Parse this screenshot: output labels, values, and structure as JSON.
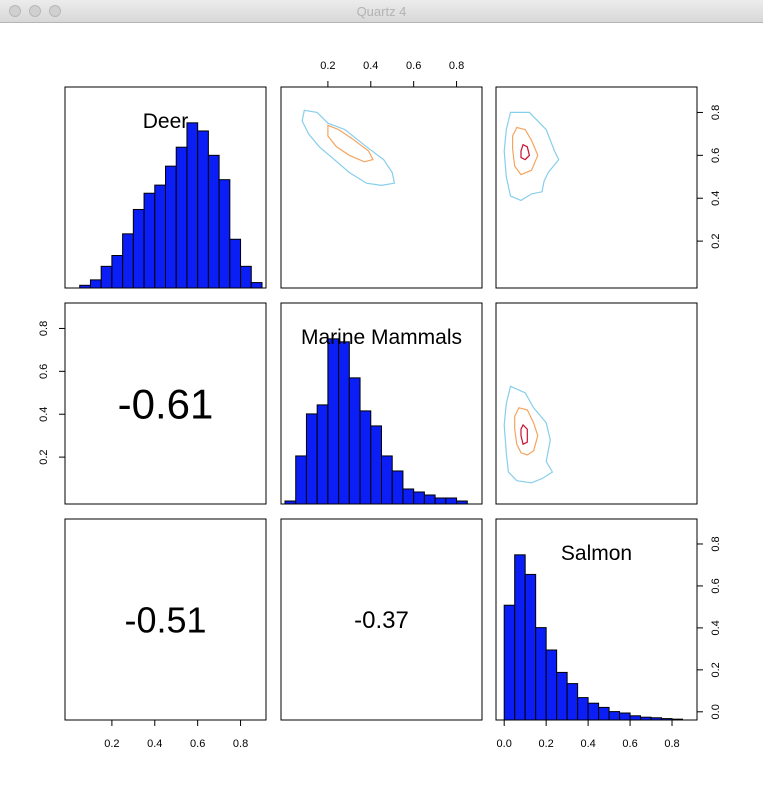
{
  "window": {
    "title": "Quartz 4"
  },
  "chart_data": {
    "type": "pairs",
    "variables": [
      "Deer",
      "Marine Mammals",
      "Salmon"
    ],
    "correlations": [
      {
        "row": 1,
        "col": 0,
        "label": "-0.61",
        "value": -0.61
      },
      {
        "row": 2,
        "col": 0,
        "label": "-0.51",
        "value": -0.51
      },
      {
        "row": 2,
        "col": 1,
        "label": "-0.37",
        "value": -0.37
      }
    ],
    "histograms": [
      {
        "variable": "Deer",
        "xlim": [
          0,
          0.9
        ],
        "breaks": [
          0,
          0.05,
          0.1,
          0.15,
          0.2,
          0.25,
          0.3,
          0.35,
          0.4,
          0.45,
          0.5,
          0.55,
          0.6,
          0.65,
          0.7,
          0.75,
          0.8,
          0.85,
          0.9
        ],
        "heights": [
          0,
          0.01,
          0.03,
          0.08,
          0.12,
          0.2,
          0.29,
          0.35,
          0.38,
          0.45,
          0.52,
          0.61,
          0.58,
          0.49,
          0.4,
          0.18,
          0.08,
          0.02
        ]
      },
      {
        "variable": "Marine Mammals",
        "xlim": [
          0,
          0.9
        ],
        "breaks": [
          0,
          0.05,
          0.1,
          0.15,
          0.2,
          0.25,
          0.3,
          0.35,
          0.4,
          0.45,
          0.5,
          0.55,
          0.6,
          0.65,
          0.7,
          0.75,
          0.8,
          0.85,
          0.9
        ],
        "heights": [
          0.01,
          0.16,
          0.3,
          0.33,
          0.55,
          0.54,
          0.42,
          0.31,
          0.26,
          0.16,
          0.11,
          0.05,
          0.04,
          0.03,
          0.02,
          0.02,
          0.01,
          0
        ]
      },
      {
        "variable": "Salmon",
        "xlim": [
          -0.02,
          0.9
        ],
        "breaks": [
          0,
          0.05,
          0.1,
          0.15,
          0.2,
          0.25,
          0.3,
          0.35,
          0.4,
          0.45,
          0.5,
          0.55,
          0.6,
          0.65,
          0.7,
          0.75,
          0.8,
          0.85
        ],
        "heights": [
          0.41,
          0.59,
          0.52,
          0.33,
          0.25,
          0.17,
          0.13,
          0.08,
          0.06,
          0.045,
          0.03,
          0.025,
          0.015,
          0.01,
          0.008,
          0.005,
          0.003
        ]
      }
    ],
    "contours": [
      {
        "row": 0,
        "col": 1,
        "x_var": "Marine Mammals",
        "y_var": "Deer",
        "xlim": [
          0,
          0.9
        ],
        "ylim": [
          0,
          0.9
        ],
        "levels": [
          {
            "color": "#87ceeb",
            "points": [
              [
                0.09,
                0.81
              ],
              [
                0.15,
                0.8
              ],
              [
                0.2,
                0.75
              ],
              [
                0.28,
                0.72
              ],
              [
                0.38,
                0.64
              ],
              [
                0.46,
                0.58
              ],
              [
                0.5,
                0.52
              ],
              [
                0.51,
                0.47
              ],
              [
                0.45,
                0.46
              ],
              [
                0.38,
                0.47
              ],
              [
                0.3,
                0.52
              ],
              [
                0.23,
                0.58
              ],
              [
                0.16,
                0.64
              ],
              [
                0.11,
                0.7
              ],
              [
                0.08,
                0.76
              ]
            ]
          },
          {
            "color": "#f4a460",
            "points": [
              [
                0.2,
                0.74
              ],
              [
                0.25,
                0.72
              ],
              [
                0.31,
                0.68
              ],
              [
                0.39,
                0.62
              ],
              [
                0.41,
                0.58
              ],
              [
                0.37,
                0.57
              ],
              [
                0.3,
                0.6
              ],
              [
                0.24,
                0.64
              ],
              [
                0.2,
                0.69
              ]
            ]
          }
        ]
      },
      {
        "row": 0,
        "col": 2,
        "x_var": "Salmon",
        "y_var": "Deer",
        "xlim": [
          -0.02,
          0.9
        ],
        "ylim": [
          0,
          0.9
        ],
        "levels": [
          {
            "color": "#87ceeb",
            "points": [
              [
                0.03,
                0.8
              ],
              [
                0.12,
                0.8
              ],
              [
                0.2,
                0.72
              ],
              [
                0.24,
                0.62
              ],
              [
                0.26,
                0.58
              ],
              [
                0.21,
                0.52
              ],
              [
                0.19,
                0.48
              ],
              [
                0.18,
                0.43
              ],
              [
                0.13,
                0.42
              ],
              [
                0.08,
                0.39
              ],
              [
                0.03,
                0.41
              ],
              [
                0.01,
                0.5
              ],
              [
                0.0,
                0.62
              ],
              [
                0.01,
                0.72
              ]
            ]
          },
          {
            "color": "#f4a460",
            "points": [
              [
                0.06,
                0.73
              ],
              [
                0.1,
                0.72
              ],
              [
                0.13,
                0.67
              ],
              [
                0.16,
                0.6
              ],
              [
                0.13,
                0.53
              ],
              [
                0.08,
                0.51
              ],
              [
                0.05,
                0.55
              ],
              [
                0.04,
                0.63
              ],
              [
                0.04,
                0.69
              ]
            ]
          },
          {
            "color": "#c8102e",
            "points": [
              [
                0.09,
                0.65
              ],
              [
                0.11,
                0.64
              ],
              [
                0.12,
                0.6
              ],
              [
                0.1,
                0.58
              ],
              [
                0.08,
                0.59
              ],
              [
                0.08,
                0.62
              ]
            ]
          }
        ]
      },
      {
        "row": 1,
        "col": 2,
        "x_var": "Salmon",
        "y_var": "Marine Mammals",
        "xlim": [
          -0.02,
          0.9
        ],
        "ylim": [
          0,
          0.9
        ],
        "levels": [
          {
            "color": "#87ceeb",
            "points": [
              [
                0.03,
                0.53
              ],
              [
                0.1,
                0.5
              ],
              [
                0.14,
                0.43
              ],
              [
                0.2,
                0.36
              ],
              [
                0.22,
                0.28
              ],
              [
                0.2,
                0.18
              ],
              [
                0.23,
                0.13
              ],
              [
                0.18,
                0.1
              ],
              [
                0.13,
                0.08
              ],
              [
                0.06,
                0.09
              ],
              [
                0.02,
                0.13
              ],
              [
                0.01,
                0.22
              ],
              [
                0.0,
                0.35
              ],
              [
                0.01,
                0.45
              ]
            ]
          },
          {
            "color": "#f4a460",
            "points": [
              [
                0.07,
                0.43
              ],
              [
                0.11,
                0.42
              ],
              [
                0.14,
                0.36
              ],
              [
                0.16,
                0.3
              ],
              [
                0.14,
                0.23
              ],
              [
                0.11,
                0.21
              ],
              [
                0.08,
                0.22
              ],
              [
                0.06,
                0.26
              ],
              [
                0.05,
                0.33
              ],
              [
                0.05,
                0.39
              ]
            ]
          },
          {
            "color": "#c8102e",
            "points": [
              [
                0.09,
                0.35
              ],
              [
                0.11,
                0.33
              ],
              [
                0.11,
                0.27
              ],
              [
                0.09,
                0.26
              ],
              [
                0.08,
                0.3
              ],
              [
                0.08,
                0.33
              ]
            ]
          }
        ]
      }
    ],
    "axes": {
      "top": {
        "col": 1,
        "xlim": [
          0,
          0.9
        ],
        "ticks": [
          0.2,
          0.4,
          0.6,
          0.8
        ],
        "labels": [
          "0.2",
          "0.4",
          "0.6",
          "0.8"
        ]
      },
      "bottom0": {
        "col": 0,
        "xlim": [
          0,
          0.9
        ],
        "ticks": [
          0.2,
          0.4,
          0.6,
          0.8
        ],
        "labels": [
          "0.2",
          "0.4",
          "0.6",
          "0.8"
        ]
      },
      "bottom2": {
        "col": 2,
        "xlim": [
          -0.02,
          0.9
        ],
        "ticks": [
          0,
          0.2,
          0.4,
          0.6,
          0.8
        ],
        "labels": [
          "0.0",
          "0.2",
          "0.4",
          "0.6",
          "0.8"
        ]
      },
      "right0": {
        "row": 0,
        "ylim": [
          0,
          0.9
        ],
        "ticks": [
          0.2,
          0.4,
          0.6,
          0.8
        ],
        "labels": [
          "0.2",
          "0.4",
          "0.6",
          "0.8"
        ]
      },
      "left1": {
        "row": 1,
        "ylim": [
          0,
          0.9
        ],
        "ticks": [
          0.2,
          0.4,
          0.6,
          0.8
        ],
        "labels": [
          "0.2",
          "0.4",
          "0.6",
          "0.8"
        ]
      },
      "right2": {
        "row": 2,
        "ylim": [
          -0.02,
          0.9
        ],
        "ticks": [
          0,
          0.2,
          0.4,
          0.6,
          0.8
        ],
        "labels": [
          "0.0",
          "0.2",
          "0.4",
          "0.6",
          "0.8"
        ]
      }
    },
    "bar_color": "#0a1ef5"
  }
}
